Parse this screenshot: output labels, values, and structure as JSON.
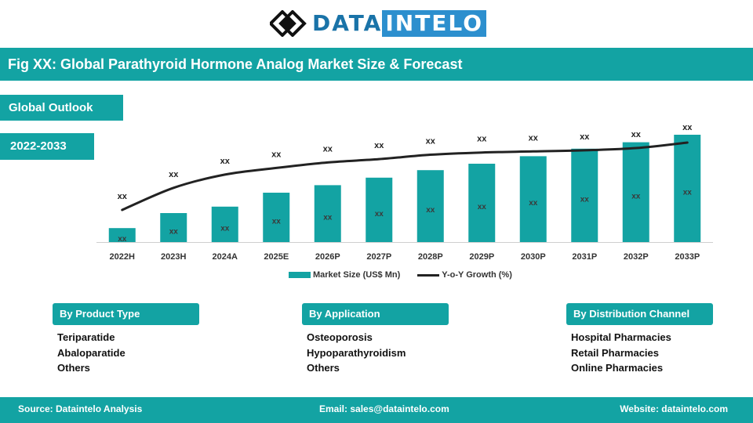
{
  "logo": {
    "part1": "DATA",
    "part2": "INTELO"
  },
  "title": "Fig XX: Global Parathyroid Hormone Analog Market Size & Forecast",
  "tags": {
    "outlook": "Global Outlook",
    "years": "2022-2033"
  },
  "chart_data": {
    "type": "bar",
    "categories": [
      "2022H",
      "2023H",
      "2024A",
      "2025E",
      "2026P",
      "2027P",
      "2028P",
      "2029P",
      "2030P",
      "2031P",
      "2032P",
      "2033P"
    ],
    "series": [
      {
        "name": "Market Size (US$ Mn)",
        "type": "bar",
        "values": [
          13,
          27,
          33,
          46,
          53,
          60,
          67,
          73,
          80,
          87,
          93,
          100
        ],
        "labels": [
          "xx",
          "xx",
          "xx",
          "xx",
          "xx",
          "xx",
          "xx",
          "xx",
          "xx",
          "xx",
          "xx",
          "xx"
        ]
      },
      {
        "name": "Y-o-Y Growth (%)",
        "type": "line",
        "values": [
          30,
          50,
          62,
          68,
          73,
          76,
          80,
          82,
          83,
          84,
          86,
          91
        ],
        "labels": [
          "xx",
          "xx",
          "xx",
          "xx",
          "xx",
          "xx",
          "xx",
          "xx",
          "xx",
          "xx",
          "xx",
          "xx"
        ]
      }
    ],
    "ylim": [
      0,
      100
    ],
    "grid": false,
    "legend": "bottom",
    "colors": {
      "bar": "#13a3a3",
      "line": "#222222"
    }
  },
  "segments": [
    {
      "title": "By Product Type",
      "items": [
        "Teriparatide",
        "Abaloparatide",
        "Others"
      ]
    },
    {
      "title": "By Application",
      "items": [
        "Osteoporosis",
        "Hypoparathyroidism",
        "Others"
      ]
    },
    {
      "title": "By Distribution Channel",
      "items": [
        "Hospital Pharmacies",
        "Retail Pharmacies",
        "Online Pharmacies"
      ]
    }
  ],
  "footer": {
    "source": "Source: Dataintelo  Analysis",
    "email": "Email: sales@dataintelo.com",
    "website": "Website: dataintelo.com"
  }
}
